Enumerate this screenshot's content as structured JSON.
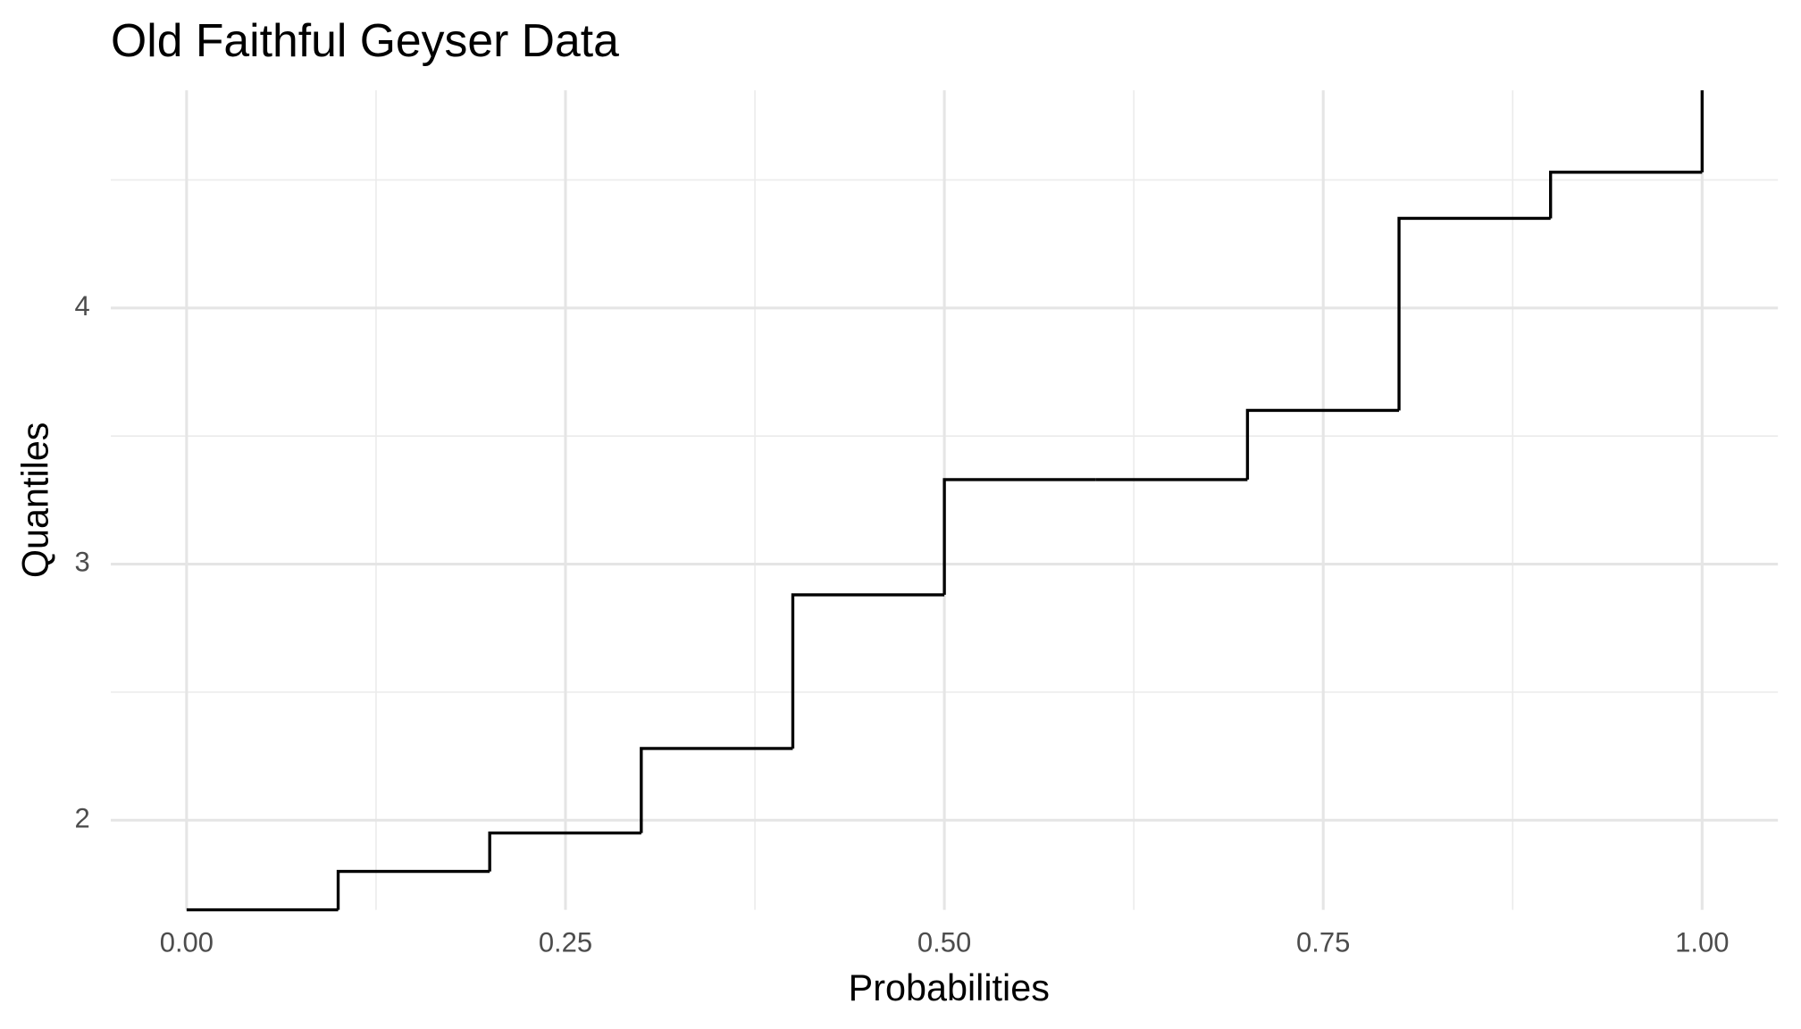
{
  "chart_data": {
    "type": "step",
    "title": "Old Faithful Geyser Data",
    "x_label": "Probabilities",
    "y_label": "Quantiles",
    "x": [
      0,
      0.1,
      0.2,
      0.3,
      0.4,
      0.5,
      0.6,
      0.7,
      0.8,
      0.9,
      1.0
    ],
    "values": [
      1.65,
      1.8,
      1.95,
      2.28,
      2.88,
      3.33,
      3.33,
      3.6,
      4.35,
      4.53,
      4.85
    ],
    "color": "#000000",
    "xlim": [
      -0.05,
      1.05
    ],
    "xticks": [
      {
        "value": 0,
        "label": "0.00"
      },
      0.25,
      {
        "value": 0.5,
        "label": "0.50"
      },
      0.75,
      {
        "value": 1,
        "label": "1.00"
      }
    ],
    "xminor": [
      0.125,
      0.375,
      0.625,
      0.875
    ],
    "ylim": [
      1.65,
      4.85
    ],
    "yticks": [
      2,
      3,
      4
    ],
    "yminor": [
      2.5,
      3.5,
      4.5
    ],
    "grid": true
  }
}
